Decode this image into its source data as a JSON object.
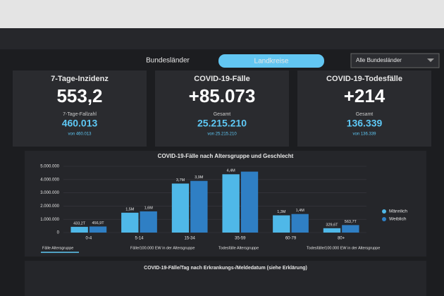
{
  "tabs": [
    "Bundesländer",
    "Landkreise"
  ],
  "filter": "Alle Bundesländer",
  "cards": [
    {
      "title": "7-Tage-Inzidenz",
      "value": "553,2",
      "sub_label": "7-Tage-Fallzahl",
      "sub_value": "460.013",
      "sub_note": "von 460.013"
    },
    {
      "title": "COVID-19-Fälle",
      "value": "+85.073",
      "sub_label": "Gesamt",
      "sub_value": "25.215.210",
      "sub_note": "von 25.215.210"
    },
    {
      "title": "COVID-19-Todesfälle",
      "value": "+214",
      "sub_label": "Gesamt",
      "sub_value": "136.339",
      "sub_note": "von 136.339"
    }
  ],
  "chart_data": {
    "type": "bar",
    "title": "COVID-19-Fälle nach Altersgruppe und Geschlecht",
    "categories": [
      "0-4",
      "5-14",
      "15-34",
      "35-59",
      "60-79",
      "80+"
    ],
    "series": [
      {
        "name": "Männlich",
        "color": "#4fb8e8",
        "values": [
          433200,
          1500000,
          3700000,
          4400000,
          1300000,
          329600
        ],
        "value_labels": [
          "433,2T",
          "1,5M",
          "3,7M",
          "4,4M",
          "1,3M",
          "329,6T"
        ]
      },
      {
        "name": "Weiblich",
        "color": "#2f7fc4",
        "values": [
          456900,
          1600000,
          3900000,
          4600000,
          1400000,
          563700
        ],
        "value_labels": [
          "456,9T",
          "1,6M",
          "3,9M",
          null,
          "1,4M",
          "563,7T"
        ]
      }
    ],
    "ylim": [
      0,
      5000000
    ],
    "yticks": [
      0,
      {
        "value": 1000000,
        "label": "1.000.000"
      },
      {
        "value": 2000000,
        "label": "2.000.000"
      },
      {
        "value": 3000000,
        "label": "3.000.000"
      },
      {
        "value": 4000000,
        "label": "4.000.000"
      },
      {
        "value": 5000000,
        "label": "5.000.000"
      }
    ],
    "grid": true,
    "legend": "right",
    "views": [
      "Fälle Altersgruppe",
      "Fälle/100.000 EW in der Altersgruppe",
      "Todesfälle Altersgruppe",
      "Todesfälle/100.000 EW in der Altersgruppe"
    ]
  },
  "next_section": "COVID-19-Fälle/Tag nach Erkrankungs-/Meldedatum (siehe Erklärung)"
}
